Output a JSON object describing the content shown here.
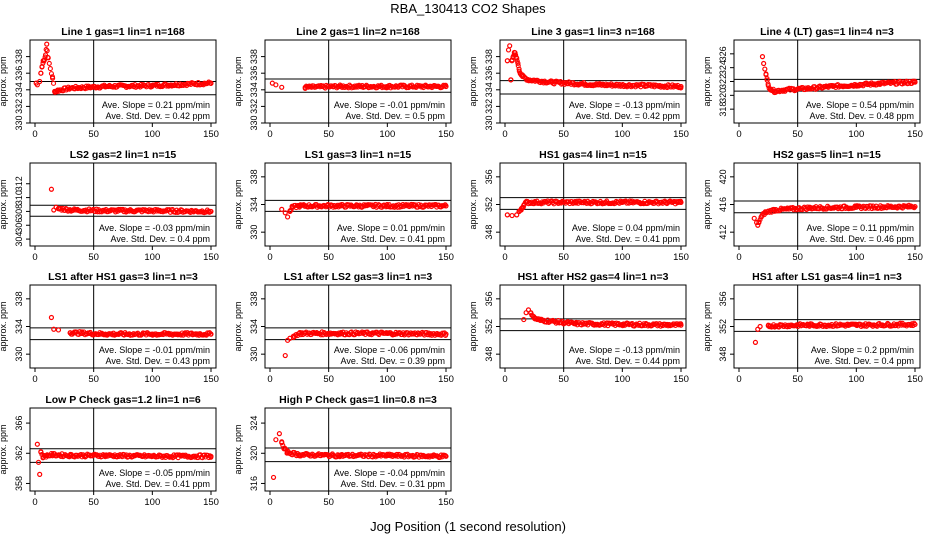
{
  "title": "RBA_130413  CO2 Shapes",
  "xlabel": "Jog Position (1 second resolution)",
  "colors": {
    "points": "#ff0000",
    "axes": "#000000",
    "background": "#ffffff"
  },
  "chart_data": [
    {
      "type": "scatter",
      "title": "Line 1 gas=1 lin=1 n=168",
      "ylabel": "approx. ppm",
      "xlim": [
        0,
        150
      ],
      "ylim": [
        330,
        340
      ],
      "xticks": [
        0,
        50,
        100,
        150
      ],
      "yticks": [
        330,
        332,
        334,
        336,
        338
      ],
      "hlines": [
        333.4,
        335.0
      ],
      "vline": 50,
      "annotations": [
        "Ave. Slope = 0.21  ppm/min",
        "Ave. Std. Dev. = 0.42  ppm"
      ],
      "points": [
        [
          1,
          334.8
        ],
        [
          2,
          334.6
        ],
        [
          4,
          335
        ],
        [
          5,
          336
        ],
        [
          6,
          336.8
        ],
        [
          7,
          337.5
        ],
        [
          8,
          337.6
        ],
        [
          9,
          338.2
        ],
        [
          10,
          339.5
        ],
        [
          11,
          337.9
        ],
        [
          15,
          335.4
        ],
        [
          17,
          333.7
        ],
        [
          19,
          333.9
        ],
        [
          30,
          334.2
        ],
        [
          60,
          334.4
        ],
        [
          100,
          334.5
        ],
        [
          150,
          334.8
        ]
      ]
    },
    {
      "type": "scatter",
      "title": "Line 2 gas=1 lin=2 n=168",
      "ylabel": "approx. ppm",
      "xlim": [
        0,
        150
      ],
      "ylim": [
        330,
        340
      ],
      "xticks": [
        0,
        50,
        100,
        150
      ],
      "yticks": [
        330,
        332,
        334,
        336,
        338
      ],
      "hlines": [
        333.7,
        335.3
      ],
      "vline": 50,
      "annotations": [
        "Ave. Slope = -0.01  ppm/min",
        "Ave. Std. Dev. = 0.5  ppm"
      ],
      "points": [
        [
          2,
          334.8
        ],
        [
          5,
          334.6
        ],
        [
          10,
          334.3
        ],
        [
          30,
          334.3
        ],
        [
          60,
          334.4
        ],
        [
          100,
          334.4
        ],
        [
          150,
          334.4
        ]
      ]
    },
    {
      "type": "scatter",
      "title": "Line 3 gas=1 lin=3 n=168",
      "ylabel": "approx. ppm",
      "xlim": [
        0,
        150
      ],
      "ylim": [
        330,
        340
      ],
      "xticks": [
        0,
        50,
        100,
        150
      ],
      "yticks": [
        330,
        332,
        334,
        336,
        338
      ],
      "hlines": [
        333.5,
        335.1
      ],
      "vline": 50,
      "annotations": [
        "Ave. Slope = -0.13  ppm/min",
        "Ave. Std. Dev. = 0.42  ppm"
      ],
      "points": [
        [
          2,
          337.5
        ],
        [
          3,
          338.8
        ],
        [
          4,
          339.3
        ],
        [
          5,
          335.2
        ],
        [
          6,
          337.6
        ],
        [
          7,
          338
        ],
        [
          8,
          338.5
        ],
        [
          9,
          338.2
        ],
        [
          10,
          337.8
        ],
        [
          11,
          337.2
        ],
        [
          12,
          336.5
        ],
        [
          13,
          336
        ],
        [
          15,
          335.6
        ],
        [
          20,
          335.2
        ],
        [
          40,
          334.9
        ],
        [
          80,
          334.6
        ],
        [
          120,
          334.5
        ],
        [
          150,
          334.4
        ]
      ]
    },
    {
      "type": "scatter",
      "title": "Line 4 (LT) gas=1 lin=4 n=3",
      "ylabel": "approx. ppm",
      "xlim": [
        0,
        150
      ],
      "ylim": [
        316,
        328
      ],
      "xticks": [
        0,
        50,
        100,
        150
      ],
      "yticks": [
        318,
        320,
        322,
        324,
        326
      ],
      "hlines": [
        320.6,
        322.3
      ],
      "vline": 50,
      "annotations": [
        "Ave. Slope = 0.54  ppm/min",
        "Ave. Std. Dev. = 0.48  ppm"
      ],
      "points": [
        [
          20,
          325.6
        ],
        [
          21,
          324.6
        ],
        [
          22,
          323.8
        ],
        [
          23,
          323
        ],
        [
          24,
          322.2
        ],
        [
          25,
          321.4
        ],
        [
          27,
          320.9
        ],
        [
          30,
          320.6
        ],
        [
          40,
          320.8
        ],
        [
          60,
          321
        ],
        [
          80,
          321.3
        ],
        [
          100,
          321.5
        ],
        [
          120,
          321.7
        ],
        [
          150,
          321.9
        ]
      ]
    },
    {
      "type": "scatter",
      "title": "LS2 gas=2 lin=1 n=15",
      "ylabel": "approx. ppm",
      "xlim": [
        0,
        150
      ],
      "ylim": [
        303,
        315
      ],
      "xticks": [
        0,
        50,
        100,
        150
      ],
      "yticks": [
        304,
        306,
        308,
        310,
        312
      ],
      "hlines": [
        307.3,
        308.9
      ],
      "vline": 50,
      "annotations": [
        "Ave. Slope = -0.03  ppm/min",
        "Ave. Std. Dev. = 0.4  ppm"
      ],
      "points": [
        [
          14,
          311.2
        ],
        [
          16,
          308.2
        ],
        [
          18,
          308.6
        ],
        [
          20,
          308.4
        ],
        [
          30,
          308.2
        ],
        [
          60,
          308.1
        ],
        [
          100,
          308.1
        ],
        [
          150,
          308
        ]
      ]
    },
    {
      "type": "scatter",
      "title": "LS1 gas=3 lin=1 n=15",
      "ylabel": "approx. ppm",
      "xlim": [
        0,
        150
      ],
      "ylim": [
        328,
        340
      ],
      "xticks": [
        0,
        50,
        100,
        150
      ],
      "yticks": [
        330,
        334,
        338
      ],
      "hlines": [
        333.0,
        334.6
      ],
      "vline": 50,
      "annotations": [
        "Ave. Slope = 0.01  ppm/min",
        "Ave. Std. Dev. = 0.41  ppm"
      ],
      "points": [
        [
          10,
          333.3
        ],
        [
          13,
          332.8
        ],
        [
          15,
          332.2
        ],
        [
          17,
          333
        ],
        [
          19,
          333.6
        ],
        [
          25,
          333.8
        ],
        [
          60,
          333.8
        ],
        [
          100,
          333.8
        ],
        [
          150,
          333.8
        ]
      ]
    },
    {
      "type": "scatter",
      "title": "HS1 gas=4 lin=1 n=15",
      "ylabel": "approx. ppm",
      "xlim": [
        0,
        150
      ],
      "ylim": [
        346,
        358
      ],
      "xticks": [
        0,
        50,
        100,
        150
      ],
      "yticks": [
        348,
        352,
        356
      ],
      "hlines": [
        351.3,
        353.0
      ],
      "vline": 50,
      "annotations": [
        "Ave. Slope = 0.04  ppm/min",
        "Ave. Std. Dev. = 0.41  ppm"
      ],
      "points": [
        [
          2,
          350.5
        ],
        [
          6,
          350.4
        ],
        [
          10,
          350.5
        ],
        [
          12,
          351
        ],
        [
          14,
          351.4
        ],
        [
          16,
          351.9
        ],
        [
          18,
          352.3
        ],
        [
          25,
          352.3
        ],
        [
          60,
          352.3
        ],
        [
          100,
          352.3
        ],
        [
          150,
          352.3
        ]
      ]
    },
    {
      "type": "scatter",
      "title": "HS2 gas=5 lin=1 n=15",
      "ylabel": "approx. ppm",
      "xlim": [
        0,
        150
      ],
      "ylim": [
        410,
        422
      ],
      "xticks": [
        0,
        50,
        100,
        150
      ],
      "yticks": [
        412,
        416,
        420
      ],
      "hlines": [
        414.8,
        416.5
      ],
      "vline": 50,
      "annotations": [
        "Ave. Slope = 0.11  ppm/min",
        "Ave. Std. Dev. = 0.46  ppm"
      ],
      "points": [
        [
          13,
          414
        ],
        [
          15,
          413.4
        ],
        [
          16,
          413
        ],
        [
          17,
          413.5
        ],
        [
          19,
          414.2
        ],
        [
          22,
          414.8
        ],
        [
          30,
          415.2
        ],
        [
          60,
          415.5
        ],
        [
          100,
          415.6
        ],
        [
          150,
          415.7
        ]
      ]
    },
    {
      "type": "scatter",
      "title": "LS1 after HS1 gas=3 lin=1 n=3",
      "ylabel": "approx. ppm",
      "xlim": [
        0,
        150
      ],
      "ylim": [
        328,
        340
      ],
      "xticks": [
        0,
        50,
        100,
        150
      ],
      "yticks": [
        330,
        334,
        338
      ],
      "hlines": [
        332.1,
        333.8
      ],
      "vline": 50,
      "annotations": [
        "Ave. Slope = -0.01  ppm/min",
        "Ave. Std. Dev. = 0.43  ppm"
      ],
      "points": [
        [
          14,
          335.3
        ],
        [
          16,
          333.6
        ],
        [
          20,
          333.5
        ],
        [
          30,
          333.1
        ],
        [
          60,
          332.9
        ],
        [
          100,
          332.9
        ],
        [
          150,
          332.9
        ]
      ]
    },
    {
      "type": "scatter",
      "title": "LS1 after LS2 gas=3 lin=1 n=3",
      "ylabel": "approx. ppm",
      "xlim": [
        0,
        150
      ],
      "ylim": [
        328,
        340
      ],
      "xticks": [
        0,
        50,
        100,
        150
      ],
      "yticks": [
        330,
        334,
        338
      ],
      "hlines": [
        332.1,
        333.8
      ],
      "vline": 50,
      "annotations": [
        "Ave. Slope = -0.06  ppm/min",
        "Ave. Std. Dev. = 0.39  ppm"
      ],
      "points": [
        [
          13,
          329.8
        ],
        [
          15,
          332
        ],
        [
          17,
          332.3
        ],
        [
          20,
          332.6
        ],
        [
          25,
          333
        ],
        [
          60,
          333
        ],
        [
          100,
          333
        ],
        [
          150,
          332.9
        ]
      ]
    },
    {
      "type": "scatter",
      "title": "HS1 after HS2 gas=4 lin=1 n=3",
      "ylabel": "approx. ppm",
      "xlim": [
        0,
        150
      ],
      "ylim": [
        346,
        358
      ],
      "xticks": [
        0,
        50,
        100,
        150
      ],
      "yticks": [
        348,
        352,
        356
      ],
      "hlines": [
        351.4,
        353.1
      ],
      "vline": 50,
      "annotations": [
        "Ave. Slope = -0.13  ppm/min",
        "Ave. Std. Dev. = 0.44  ppm"
      ],
      "points": [
        [
          16,
          353
        ],
        [
          18,
          354
        ],
        [
          20,
          354.4
        ],
        [
          22,
          354
        ],
        [
          25,
          353.2
        ],
        [
          30,
          352.9
        ],
        [
          60,
          352.4
        ],
        [
          100,
          352.3
        ],
        [
          150,
          352.2
        ]
      ]
    },
    {
      "type": "scatter",
      "title": "HS1 after LS1 gas=4 lin=1 n=3",
      "ylabel": "approx. ppm",
      "xlim": [
        0,
        150
      ],
      "ylim": [
        346,
        358
      ],
      "xticks": [
        0,
        50,
        100,
        150
      ],
      "yticks": [
        348,
        352,
        356
      ],
      "hlines": [
        351.3,
        353.0
      ],
      "vline": 50,
      "annotations": [
        "Ave. Slope = 0.2  ppm/min",
        "Ave. Std. Dev. = 0.4  ppm"
      ],
      "points": [
        [
          14,
          349.7
        ],
        [
          16,
          351.6
        ],
        [
          18,
          352
        ],
        [
          25,
          352.1
        ],
        [
          60,
          352.2
        ],
        [
          100,
          352.2
        ],
        [
          150,
          352.3
        ]
      ]
    },
    {
      "type": "scatter",
      "title": "Low P Check gas=1.2 lin=1 n=6",
      "ylabel": "approx. ppm",
      "xlim": [
        0,
        150
      ],
      "ylim": [
        357,
        368
      ],
      "xticks": [
        0,
        50,
        100,
        150
      ],
      "yticks": [
        358,
        362,
        366
      ],
      "hlines": [
        360.8,
        362.6
      ],
      "vline": 50,
      "annotations": [
        "Ave. Slope = -0.05  ppm/min",
        "Ave. Std. Dev. = 0.41  ppm"
      ],
      "points": [
        [
          2,
          363.2
        ],
        [
          3,
          360.8
        ],
        [
          4,
          359.2
        ],
        [
          5,
          362.2
        ],
        [
          7,
          361.5
        ],
        [
          10,
          361.7
        ],
        [
          15,
          361.8
        ],
        [
          30,
          361.7
        ],
        [
          60,
          361.7
        ],
        [
          100,
          361.6
        ],
        [
          150,
          361.6
        ]
      ]
    },
    {
      "type": "scatter",
      "title": "High P Check gas=1 lin=0.8 n=3",
      "ylabel": "approx. ppm",
      "xlim": [
        0,
        150
      ],
      "ylim": [
        315,
        326
      ],
      "xticks": [
        0,
        50,
        100,
        150
      ],
      "yticks": [
        316,
        320,
        324
      ],
      "hlines": [
        318.9,
        320.7
      ],
      "vline": 50,
      "annotations": [
        "Ave. Slope = -0.04  ppm/min",
        "Ave. Std. Dev. = 0.31  ppm"
      ],
      "points": [
        [
          3,
          316.8
        ],
        [
          5,
          321.8
        ],
        [
          8,
          322.6
        ],
        [
          10,
          321.4
        ],
        [
          12,
          320.6
        ],
        [
          15,
          320.1
        ],
        [
          25,
          319.8
        ],
        [
          60,
          319.7
        ],
        [
          100,
          319.7
        ],
        [
          150,
          319.6
        ]
      ]
    }
  ]
}
